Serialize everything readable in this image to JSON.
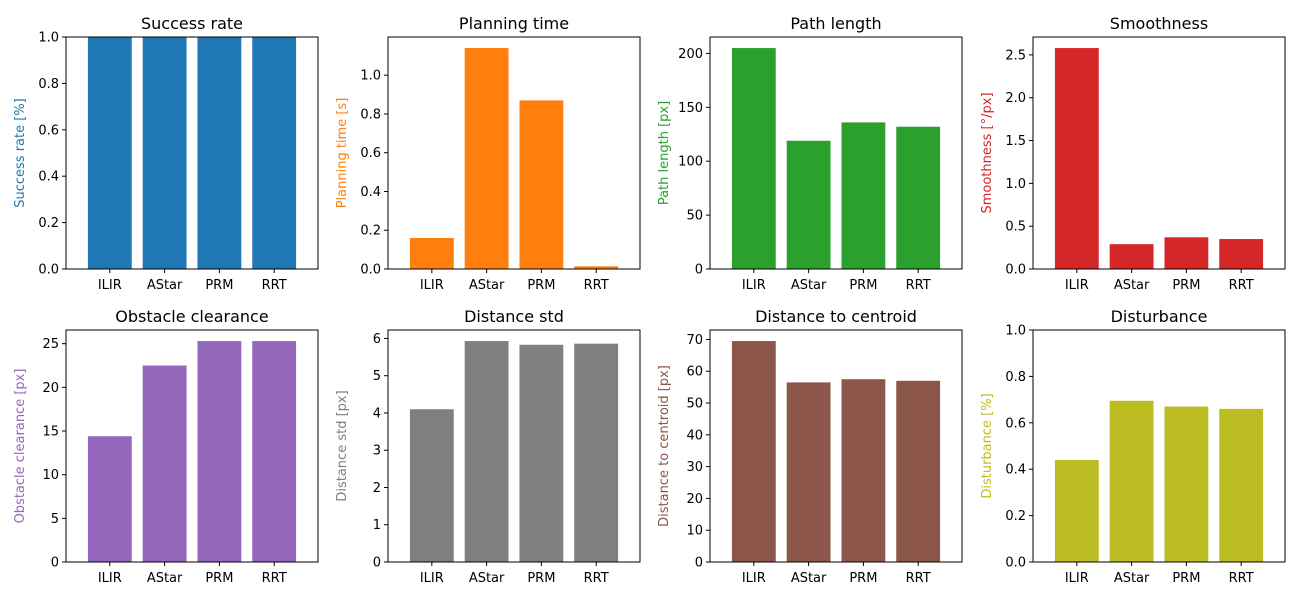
{
  "chart_data": [
    {
      "type": "bar",
      "title": "Success rate",
      "xlabel": "",
      "ylabel": "Success rate [%]",
      "categories": [
        "ILIR",
        "AStar",
        "PRM",
        "RRT"
      ],
      "values": [
        1.0,
        1.0,
        1.0,
        1.0
      ],
      "ylim": [
        0,
        1.0
      ],
      "yticks": [
        "0.0",
        "0.2",
        "0.4",
        "0.6",
        "0.8",
        "1.0"
      ],
      "color": "#1f77b4",
      "grid": false
    },
    {
      "type": "bar",
      "title": "Planning time",
      "xlabel": "",
      "ylabel": "Planning time [s]",
      "categories": [
        "ILIR",
        "AStar",
        "PRM",
        "RRT"
      ],
      "values": [
        0.16,
        1.14,
        0.87,
        0.014
      ],
      "ylim": [
        0,
        1.197
      ],
      "yticks": [
        "0.0",
        "0.2",
        "0.4",
        "0.6",
        "0.8",
        "1.0"
      ],
      "color": "#ff7f0e",
      "grid": false
    },
    {
      "type": "bar",
      "title": "Path length",
      "xlabel": "",
      "ylabel": "Path length [px]",
      "categories": [
        "ILIR",
        "AStar",
        "PRM",
        "RRT"
      ],
      "values": [
        205,
        119,
        136,
        132
      ],
      "ylim": [
        0,
        215.25
      ],
      "yticks": [
        "0",
        "50",
        "100",
        "150",
        "200"
      ],
      "color": "#2ca02c",
      "grid": false
    },
    {
      "type": "bar",
      "title": "Smoothness",
      "xlabel": "",
      "ylabel": "Smoothness [°/px]",
      "categories": [
        "ILIR",
        "AStar",
        "PRM",
        "RRT"
      ],
      "values": [
        2.58,
        0.29,
        0.37,
        0.35
      ],
      "ylim": [
        0,
        2.709
      ],
      "yticks": [
        "0.0",
        "0.5",
        "1.0",
        "1.5",
        "2.0",
        "2.5"
      ],
      "color": "#d62728",
      "grid": false
    },
    {
      "type": "bar",
      "title": "Obstacle clearance",
      "xlabel": "",
      "ylabel": "Obstacle clearance [px]",
      "categories": [
        "ILIR",
        "AStar",
        "PRM",
        "RRT"
      ],
      "values": [
        14.4,
        22.5,
        25.3,
        25.3
      ],
      "ylim": [
        0,
        26.565
      ],
      "yticks": [
        "0",
        "5",
        "10",
        "15",
        "20",
        "25"
      ],
      "color": "#9467bd",
      "grid": false
    },
    {
      "type": "bar",
      "title": "Distance std",
      "xlabel": "",
      "ylabel": "Distance std [px]",
      "categories": [
        "ILIR",
        "AStar",
        "PRM",
        "RRT"
      ],
      "values": [
        4.1,
        5.93,
        5.83,
        5.86
      ],
      "ylim": [
        0,
        6.2265
      ],
      "yticks": [
        "0",
        "1",
        "2",
        "3",
        "4",
        "5",
        "6"
      ],
      "color": "#7f7f7f",
      "grid": false
    },
    {
      "type": "bar",
      "title": "Distance to centroid",
      "xlabel": "",
      "ylabel": "Distance to centroid [px]",
      "categories": [
        "ILIR",
        "AStar",
        "PRM",
        "RRT"
      ],
      "values": [
        69.5,
        56.5,
        57.5,
        57.0
      ],
      "ylim": [
        0,
        72.975
      ],
      "yticks": [
        "0",
        "10",
        "20",
        "30",
        "40",
        "50",
        "60",
        "70"
      ],
      "color": "#8c564b",
      "grid": false
    },
    {
      "type": "bar",
      "title": "Disturbance",
      "xlabel": "",
      "ylabel": "Disturbance [%]",
      "categories": [
        "ILIR",
        "AStar",
        "PRM",
        "RRT"
      ],
      "values": [
        0.44,
        0.695,
        0.67,
        0.66
      ],
      "ylim": [
        0,
        1.0
      ],
      "yticks": [
        "0.0",
        "0.2",
        "0.4",
        "0.6",
        "0.8",
        "1.0"
      ],
      "color": "#bcbd22",
      "grid": false
    }
  ]
}
